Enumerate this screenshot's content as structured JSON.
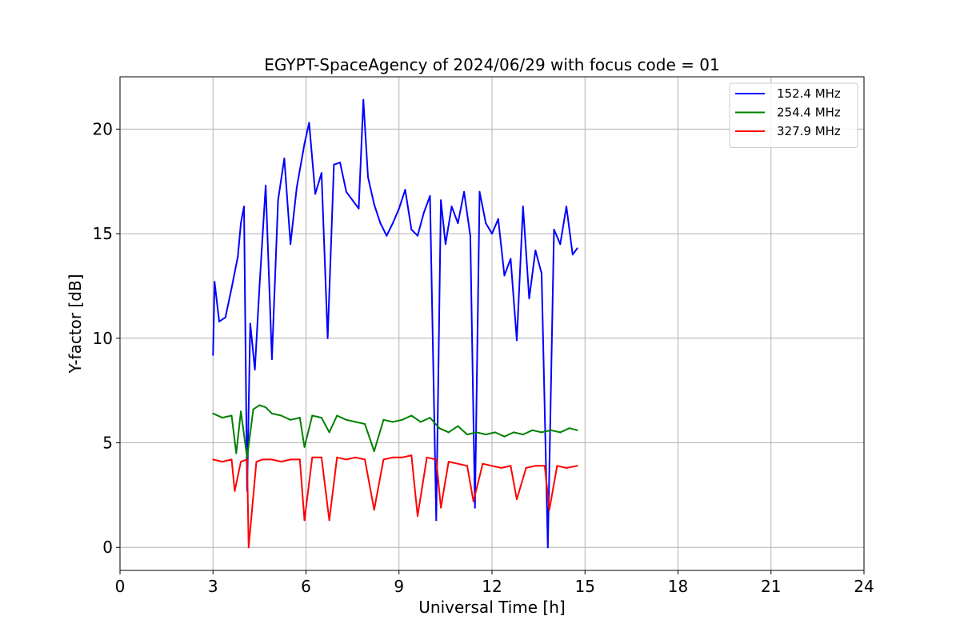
{
  "chart_data": {
    "type": "line",
    "title": "EGYPT-SpaceAgency of 2024/06/29 with focus code = 01",
    "xlabel": "Universal Time [h]",
    "ylabel": "Y-factor [dB]",
    "xlim": [
      0,
      24
    ],
    "ylim": [
      -1.1,
      22.5
    ],
    "x_ticks": [
      0,
      3,
      6,
      9,
      12,
      15,
      18,
      21,
      24
    ],
    "y_ticks": [
      0,
      5,
      10,
      15,
      20
    ],
    "grid": true,
    "legend_position": "top-right",
    "series": [
      {
        "name": "152.4 MHz",
        "color": "#0000ff",
        "x": [
          3.0,
          3.05,
          3.2,
          3.4,
          3.6,
          3.8,
          3.9,
          4.0,
          4.1,
          4.2,
          4.35,
          4.5,
          4.7,
          4.9,
          5.1,
          5.3,
          5.5,
          5.7,
          5.95,
          6.1,
          6.3,
          6.5,
          6.7,
          6.9,
          7.1,
          7.3,
          7.5,
          7.7,
          7.85,
          8.0,
          8.2,
          8.4,
          8.6,
          8.8,
          9.0,
          9.2,
          9.4,
          9.6,
          9.8,
          10.0,
          10.2,
          10.35,
          10.5,
          10.7,
          10.9,
          11.1,
          11.3,
          11.45,
          11.6,
          11.8,
          12.0,
          12.2,
          12.4,
          12.6,
          12.8,
          13.0,
          13.2,
          13.4,
          13.6,
          13.8,
          14.0,
          14.2,
          14.4,
          14.6,
          14.75
        ],
        "values": [
          9.2,
          12.7,
          10.8,
          11.0,
          12.4,
          13.9,
          15.5,
          16.3,
          2.7,
          10.7,
          8.5,
          12.5,
          17.3,
          9.0,
          16.6,
          18.6,
          14.5,
          17.2,
          19.3,
          20.3,
          16.9,
          17.9,
          10.0,
          18.3,
          18.4,
          17.0,
          16.6,
          16.2,
          21.4,
          17.7,
          16.4,
          15.5,
          14.9,
          15.5,
          16.2,
          17.1,
          15.2,
          14.9,
          16.0,
          16.8,
          1.3,
          16.6,
          14.5,
          16.3,
          15.5,
          17.0,
          14.9,
          1.9,
          17.0,
          15.5,
          15.0,
          15.7,
          13.0,
          13.8,
          9.9,
          16.3,
          11.9,
          14.2,
          13.1,
          0.0,
          15.2,
          14.5,
          16.3,
          14.0,
          14.3
        ]
      },
      {
        "name": "254.4 MHz",
        "color": "#008000",
        "x": [
          3.0,
          3.3,
          3.6,
          3.75,
          3.9,
          4.1,
          4.3,
          4.5,
          4.7,
          4.9,
          5.2,
          5.5,
          5.8,
          5.95,
          6.2,
          6.5,
          6.75,
          7.0,
          7.3,
          7.6,
          7.9,
          8.2,
          8.5,
          8.8,
          9.1,
          9.4,
          9.7,
          10.0,
          10.3,
          10.6,
          10.9,
          11.2,
          11.5,
          11.8,
          12.1,
          12.4,
          12.7,
          13.0,
          13.3,
          13.6,
          13.9,
          14.2,
          14.5,
          14.75
        ],
        "values": [
          6.4,
          6.2,
          6.3,
          4.5,
          6.5,
          4.3,
          6.6,
          6.8,
          6.7,
          6.4,
          6.3,
          6.1,
          6.2,
          4.8,
          6.3,
          6.2,
          5.5,
          6.3,
          6.1,
          6.0,
          5.9,
          4.6,
          6.1,
          6.0,
          6.1,
          6.3,
          6.0,
          6.2,
          5.7,
          5.5,
          5.8,
          5.4,
          5.5,
          5.4,
          5.5,
          5.3,
          5.5,
          5.4,
          5.6,
          5.5,
          5.6,
          5.5,
          5.7,
          5.6
        ]
      },
      {
        "name": "327.9 MHz",
        "color": "#ff0000",
        "x": [
          3.0,
          3.3,
          3.6,
          3.7,
          3.9,
          4.1,
          4.15,
          4.4,
          4.6,
          4.9,
          5.2,
          5.5,
          5.8,
          5.95,
          6.2,
          6.5,
          6.75,
          7.0,
          7.3,
          7.6,
          7.9,
          8.2,
          8.5,
          8.8,
          9.1,
          9.4,
          9.6,
          9.9,
          10.2,
          10.35,
          10.6,
          10.9,
          11.2,
          11.4,
          11.7,
          12.0,
          12.3,
          12.6,
          12.8,
          13.1,
          13.4,
          13.7,
          13.85,
          14.1,
          14.4,
          14.75
        ],
        "values": [
          4.2,
          4.1,
          4.2,
          2.7,
          4.1,
          4.2,
          0.0,
          4.1,
          4.2,
          4.2,
          4.1,
          4.2,
          4.2,
          1.3,
          4.3,
          4.3,
          1.3,
          4.3,
          4.2,
          4.3,
          4.2,
          1.8,
          4.2,
          4.3,
          4.3,
          4.4,
          1.5,
          4.3,
          4.2,
          1.9,
          4.1,
          4.0,
          3.9,
          2.2,
          4.0,
          3.9,
          3.8,
          3.9,
          2.3,
          3.8,
          3.9,
          3.9,
          1.8,
          3.9,
          3.8,
          3.9
        ]
      }
    ]
  }
}
